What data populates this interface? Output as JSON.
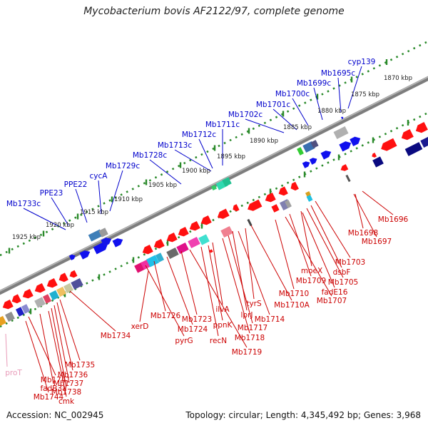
{
  "title": "Mycobacterium bovis AF2122/97, complete genome",
  "footer": {
    "accession": "Accession: NC_002945",
    "info": "Topology: circular; Length: 4,345,492 bp; Genes: 3,968"
  },
  "colors": {
    "forward_label": "#0000cc",
    "reverse_label": "#cc0000",
    "rna_label": "#e89ab8",
    "backbone": "#888888",
    "tick": "#2a8a2a"
  },
  "kbp_labels": [
    "1870 kbp",
    "1875 kbp",
    "1880 kbp",
    "1885 kbp",
    "1890 kbp",
    "1895 kbp",
    "1900 kbp",
    "1905 kbp",
    "1910 kbp",
    "1915 kbp",
    "1920 kbp",
    "1925 kbp"
  ],
  "forward_genes": [
    "cyp139",
    "Mb1695c",
    "Mb1699c",
    "Mb1700c",
    "Mb1701c",
    "Mb1702c",
    "Mb1711c",
    "Mb1712c",
    "Mb1713c",
    "Mb1728c",
    "Mb1729c",
    "cycA",
    "PPE22",
    "PPE23",
    "Mb1733c"
  ],
  "reverse_genes": [
    "Mb1696",
    "Mb1698",
    "Mb1697",
    "Mb1703",
    "dsbF",
    "Mb1705",
    "moeX",
    "fadE16",
    "Mb1709",
    "Mb1707",
    "Mb1710",
    "Mb1710A",
    "tyrS",
    "Mb1714",
    "lprJ",
    "Mb1717",
    "Mb1718",
    "ilvA",
    "ppnK",
    "recN",
    "Mb1719",
    "Mb1723",
    "Mb1724",
    "Mb1726",
    "pyrG",
    "xerD",
    "Mb1734",
    "Mb1735",
    "Mb1736",
    "Mb1737",
    "Mb1738",
    "cmk",
    "fadB3a",
    "Mb1741",
    "Mb1744"
  ],
  "rna_genes": [
    "proT"
  ]
}
